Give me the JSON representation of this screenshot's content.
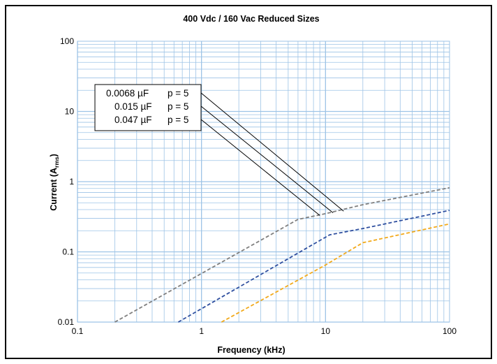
{
  "chart_data": {
    "type": "line",
    "title": "400 Vdc / 160 Vac Reduced Sizes",
    "xlabel": "Frequency (kHz)",
    "ylabel_main": "Current (A",
    "ylabel_sub": "rms",
    "ylabel_end": ")",
    "xscale": "log",
    "yscale": "log",
    "xlim": [
      0.1,
      100
    ],
    "ylim": [
      0.01,
      100
    ],
    "x_ticks": [
      0.1,
      1,
      10,
      100
    ],
    "x_tick_labels": [
      "0.1",
      "1",
      "10",
      "100"
    ],
    "y_ticks": [
      0.01,
      0.1,
      1,
      10,
      100
    ],
    "y_tick_labels": [
      "0.01",
      "0.1",
      "1",
      "10",
      "100"
    ],
    "grid": true,
    "grid_color": "#9dc3e6",
    "legend": [
      {
        "cap": "0.0068 µF",
        "p": "p = 5"
      },
      {
        "cap": "0.015 µF",
        "p": "p = 5"
      },
      {
        "cap": "0.047 µF",
        "p": "p = 5"
      }
    ],
    "series": [
      {
        "color": "#7f7f7f",
        "x": [
          0.2,
          6.0,
          10.0,
          20.0,
          100.0
        ],
        "y": [
          0.01,
          0.29,
          0.35,
          0.47,
          0.82
        ]
      },
      {
        "color": "#2f4f9f",
        "x": [
          0.65,
          10.8,
          20.0,
          100.0
        ],
        "y": [
          0.01,
          0.175,
          0.215,
          0.39
        ]
      },
      {
        "color": "#f2a91a",
        "x": [
          1.45,
          10.0,
          20.0,
          100.0
        ],
        "y": [
          0.01,
          0.065,
          0.135,
          0.25
        ]
      }
    ],
    "leader_targets": [
      {
        "x": 14.0,
        "y": 0.38
      },
      {
        "x": 11.5,
        "y": 0.36
      },
      {
        "x": 9.0,
        "y": 0.33
      }
    ]
  }
}
